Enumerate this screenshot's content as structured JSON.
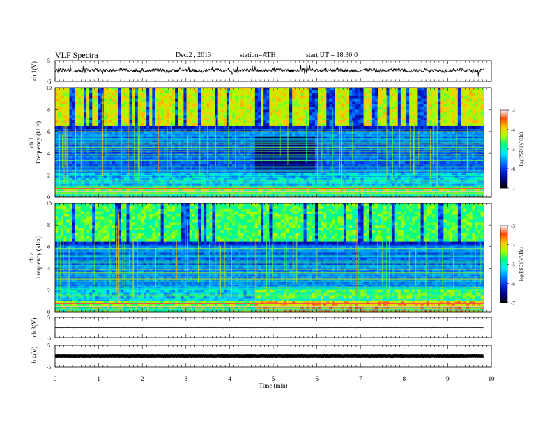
{
  "header": {
    "title": "VLF  Spectra",
    "date": "Dec.2  , 2013",
    "station": "station=ATH",
    "start": "start  UT =   18:30:0"
  },
  "chart_data": [
    {
      "type": "line",
      "panel": "ch1-waveform",
      "ylabel": "ch.1(V)",
      "ylim": [
        -5,
        5
      ],
      "yticks": [
        "5",
        "-5"
      ],
      "xlim": [
        0,
        9.82
      ],
      "series": [
        {
          "values": "noisy waveform ~+0.1 V baseline, amplitude ~0.5 V"
        }
      ]
    },
    {
      "type": "heatmap",
      "panel": "ch1-spectrogram",
      "ylabel": "ch.1\nFrequency  (kHz)",
      "ylabel_ch": "ch.1",
      "ylabel_freq": "Frequency  (kHz)",
      "ylim": [
        0,
        10
      ],
      "yticks": [
        "0",
        "2",
        "4",
        "6",
        "8",
        "10"
      ],
      "xlim": [
        0,
        9.82
      ],
      "colorbar": {
        "label": "log(PSD)(V²/Hz)",
        "ticks": [
          "-3",
          "-4",
          "-5",
          "-6",
          "-7"
        ],
        "range": [
          -7,
          -3
        ]
      },
      "colormap": [
        "#000000",
        "#0000cc",
        "#0060ff",
        "#00e0ff",
        "#00ff80",
        "#c0ff00",
        "#ffc000",
        "#ff4000",
        "#ffffff"
      ]
    },
    {
      "type": "heatmap",
      "panel": "ch2-spectrogram",
      "ylabel": "ch.2\nFrequency  (kHz)",
      "ylabel_ch": "ch.2",
      "ylabel_freq": "Frequency  (kHz)",
      "ylim": [
        0,
        10
      ],
      "yticks": [
        "0",
        "2",
        "4",
        "6",
        "8",
        "10"
      ],
      "xlim": [
        0,
        9.82
      ],
      "colorbar": {
        "label": "log(PSD)(V²/Hz)",
        "ticks": [
          "-3",
          "-4",
          "-5",
          "-6",
          "-7"
        ],
        "range": [
          -7,
          -3
        ]
      }
    },
    {
      "type": "line",
      "panel": "ch3-waveform",
      "ylabel": "ch.3(V)",
      "ylim": [
        -5,
        5
      ],
      "yticks": [
        "5",
        "-5"
      ],
      "series": [
        {
          "values": "flat trace near 0 V"
        }
      ]
    },
    {
      "type": "line",
      "panel": "ch4-waveform",
      "ylabel": "ch.4(V)",
      "ylim": [
        -5,
        5
      ],
      "yticks": [
        "5",
        "-5"
      ],
      "series": [
        {
          "values": "thick flat trace near 0 V"
        }
      ]
    }
  ],
  "xaxis": {
    "label": "Time  (min)",
    "ticks": [
      "0",
      "1",
      "2",
      "3",
      "4",
      "5",
      "6",
      "7",
      "8",
      "9",
      "10"
    ],
    "range": [
      0,
      10
    ]
  }
}
